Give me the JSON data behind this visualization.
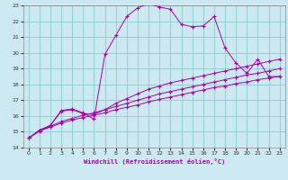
{
  "xlabel": "Windchill (Refroidissement éolien,°C)",
  "bg_color": "#cce8f0",
  "line_color": "#aa00aa",
  "grid_color": "#88cccc",
  "xlim": [
    -0.5,
    23.5
  ],
  "ylim": [
    14,
    23
  ],
  "xticks": [
    0,
    1,
    2,
    3,
    4,
    5,
    6,
    7,
    8,
    9,
    10,
    11,
    12,
    13,
    14,
    15,
    16,
    17,
    18,
    19,
    20,
    21,
    22,
    23
  ],
  "yticks": [
    14,
    15,
    16,
    17,
    18,
    19,
    20,
    21,
    22,
    23
  ],
  "line1_x": [
    0,
    1,
    2,
    3,
    4,
    5,
    6,
    7,
    8,
    9,
    10,
    11,
    12,
    13,
    14,
    15,
    16,
    17,
    18,
    19,
    20,
    21,
    22,
    23
  ],
  "line1_y": [
    14.6,
    15.05,
    15.3,
    15.55,
    15.75,
    15.9,
    16.05,
    16.2,
    16.4,
    16.55,
    16.7,
    16.9,
    17.05,
    17.2,
    17.35,
    17.5,
    17.65,
    17.8,
    17.9,
    18.05,
    18.15,
    18.3,
    18.4,
    18.5
  ],
  "line2_x": [
    0,
    1,
    2,
    3,
    4,
    5,
    6,
    7,
    8,
    9,
    10,
    11,
    12,
    13,
    14,
    15,
    16,
    17,
    18,
    19,
    20,
    21,
    22,
    23
  ],
  "line2_y": [
    14.6,
    15.05,
    15.35,
    15.65,
    15.85,
    16.05,
    16.2,
    16.4,
    16.6,
    16.8,
    17.0,
    17.2,
    17.4,
    17.55,
    17.7,
    17.85,
    18.0,
    18.15,
    18.3,
    18.45,
    18.6,
    18.7,
    18.85,
    19.0
  ],
  "line3_x": [
    0,
    1,
    2,
    3,
    4,
    5,
    6,
    7,
    8,
    9,
    10,
    11,
    12,
    13,
    14,
    15,
    16,
    17,
    18,
    19,
    20,
    21,
    22,
    23
  ],
  "line3_y": [
    14.6,
    15.1,
    15.4,
    16.3,
    16.4,
    16.15,
    16.1,
    16.4,
    16.8,
    17.1,
    17.4,
    17.7,
    17.9,
    18.1,
    18.25,
    18.4,
    18.55,
    18.7,
    18.85,
    19.0,
    19.15,
    19.3,
    19.45,
    19.6
  ],
  "line4_x": [
    0,
    1,
    2,
    3,
    4,
    5,
    6,
    7,
    8,
    9,
    10,
    11,
    12,
    13,
    14,
    15,
    16,
    17,
    18,
    19,
    20,
    21,
    22,
    23
  ],
  "line4_y": [
    14.6,
    15.1,
    15.4,
    16.35,
    16.45,
    16.2,
    15.8,
    19.9,
    21.1,
    22.3,
    22.85,
    23.1,
    22.9,
    22.75,
    21.8,
    21.65,
    21.7,
    22.3,
    20.3,
    19.35,
    18.7,
    19.6,
    18.5,
    18.5
  ]
}
